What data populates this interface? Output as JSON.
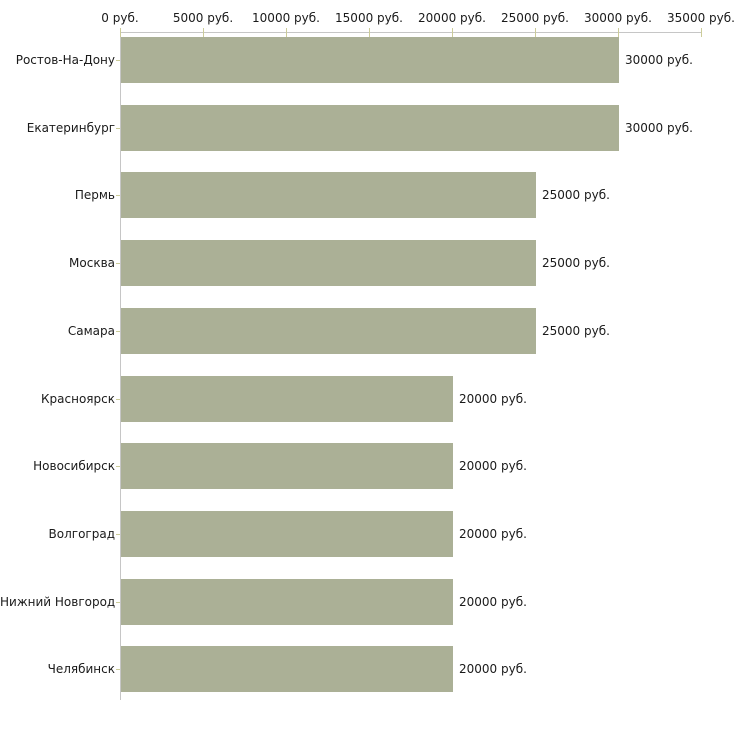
{
  "chart_data": {
    "type": "bar",
    "orientation": "horizontal",
    "title": "",
    "xlabel": "",
    "ylabel": "",
    "unit": "руб.",
    "categories": [
      "Ростов-На-Дону",
      "Екатеринбург",
      "Пермь",
      "Москва",
      "Самара",
      "Красноярск",
      "Новосибирск",
      "Волгоград",
      "Нижний Новгород",
      "Челябинск"
    ],
    "values": [
      30000,
      30000,
      25000,
      25000,
      25000,
      20000,
      20000,
      20000,
      20000,
      20000
    ],
    "value_labels": [
      "30000 руб.",
      "30000 руб.",
      "25000 руб.",
      "25000 руб.",
      "25000 руб.",
      "20000 руб.",
      "20000 руб.",
      "20000 руб.",
      "20000 руб.",
      "20000 руб."
    ],
    "x_ticks": [
      0,
      5000,
      10000,
      15000,
      20000,
      25000,
      30000,
      35000
    ],
    "x_tick_labels": [
      "0 руб.",
      "5000 руб.",
      "10000 руб.",
      "15000 руб.",
      "20000 руб.",
      "25000 руб.",
      "30000 руб.",
      "35000 руб."
    ],
    "xlim": [
      0,
      35000
    ],
    "grid": false,
    "legend_position": "none",
    "colors": {
      "bar_fill": "#abb096",
      "axis_line": "#c6c6c6",
      "tick_mark": "#cccc99",
      "text": "#1a1a1a",
      "background": "#ffffff"
    }
  }
}
